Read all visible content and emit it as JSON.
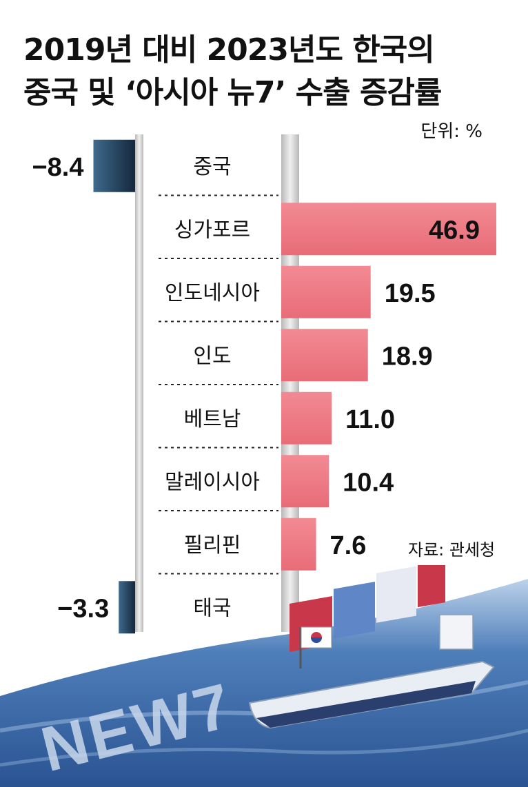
{
  "title": {
    "line1": "2019년 대비 2023년도 한국의",
    "line2": "중국 및 ‘아시아 뉴7’ 수출 증감률"
  },
  "unit_label": "단위: %",
  "source_label": "자료: 관세청",
  "illustration": {
    "text": "NEW7"
  },
  "colors": {
    "positive_bar": "#ef7b85",
    "negative_bar": "#1d3a55",
    "center_band": "#e6e6e6",
    "sea": "#2c5b9c"
  },
  "chart_data": {
    "type": "bar",
    "orientation": "horizontal",
    "title": "2019년 대비 2023년도 한국의 중국 및 ‘아시아 뉴7’ 수출 증감률",
    "unit": "%",
    "categories": [
      "중국",
      "싱가포르",
      "인도네시아",
      "인도",
      "베트남",
      "말레이시아",
      "필리핀",
      "태국"
    ],
    "values": [
      -8.4,
      46.9,
      19.5,
      18.9,
      11.0,
      10.4,
      7.6,
      -3.3
    ],
    "value_labels": [
      "−8.4",
      "46.9",
      "19.5",
      "18.9",
      "11.0",
      "10.4",
      "7.6",
      "−3.3"
    ],
    "xlim": [
      -12,
      46.9
    ],
    "grid": false,
    "legend": "none"
  }
}
